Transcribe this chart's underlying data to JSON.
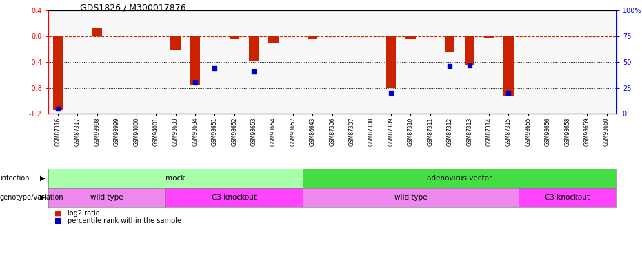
{
  "title": "GDS1826 / M300017876",
  "samples": [
    "GSM87316",
    "GSM87317",
    "GSM93998",
    "GSM93999",
    "GSM94000",
    "GSM94001",
    "GSM93633",
    "GSM93634",
    "GSM93651",
    "GSM93652",
    "GSM93653",
    "GSM93654",
    "GSM93657",
    "GSM86643",
    "GSM87306",
    "GSM87307",
    "GSM87308",
    "GSM87309",
    "GSM87310",
    "GSM87311",
    "GSM87312",
    "GSM87313",
    "GSM87314",
    "GSM87315",
    "GSM93655",
    "GSM93656",
    "GSM93658",
    "GSM93659",
    "GSM93660"
  ],
  "log2_ratio": [
    -1.15,
    0.0,
    0.13,
    0.0,
    0.0,
    0.0,
    -0.22,
    -0.75,
    0.0,
    -0.05,
    -0.38,
    -0.1,
    0.0,
    -0.05,
    0.0,
    0.0,
    0.0,
    -0.8,
    -0.05,
    0.0,
    -0.25,
    -0.45,
    -0.03,
    -0.92,
    0.0,
    0.0,
    0.0,
    0.0,
    0.0
  ],
  "percentile_rank": [
    5,
    null,
    null,
    null,
    null,
    null,
    null,
    30,
    44,
    null,
    41,
    null,
    null,
    null,
    null,
    null,
    null,
    20,
    null,
    null,
    46,
    47,
    null,
    20,
    null,
    null,
    null,
    null,
    null
  ],
  "infection_groups": [
    {
      "label": "mock",
      "start": 0,
      "end": 12,
      "color": "#aaffaa"
    },
    {
      "label": "adenovirus vector",
      "start": 13,
      "end": 28,
      "color": "#44dd44"
    }
  ],
  "genotype_groups": [
    {
      "label": "wild type",
      "start": 0,
      "end": 5,
      "color": "#ee88ee"
    },
    {
      "label": "C3 knockout",
      "start": 6,
      "end": 12,
      "color": "#ff44ff"
    },
    {
      "label": "wild type",
      "start": 13,
      "end": 23,
      "color": "#ee88ee"
    },
    {
      "label": "C3 knockout",
      "start": 24,
      "end": 28,
      "color": "#ff44ff"
    }
  ],
  "ylim_left": [
    -1.2,
    0.4
  ],
  "ylim_right": [
    0,
    100
  ],
  "bar_color": "#CC2200",
  "dot_color": "#0000CC",
  "dashed_line_color": "#CC2200",
  "left_ticks": [
    0.4,
    0.0,
    -0.4,
    -0.8,
    -1.2
  ],
  "right_ticks": [
    100,
    75,
    50,
    25,
    0
  ],
  "right_tick_labels": [
    "100%",
    "75",
    "50",
    "25",
    "0"
  ]
}
